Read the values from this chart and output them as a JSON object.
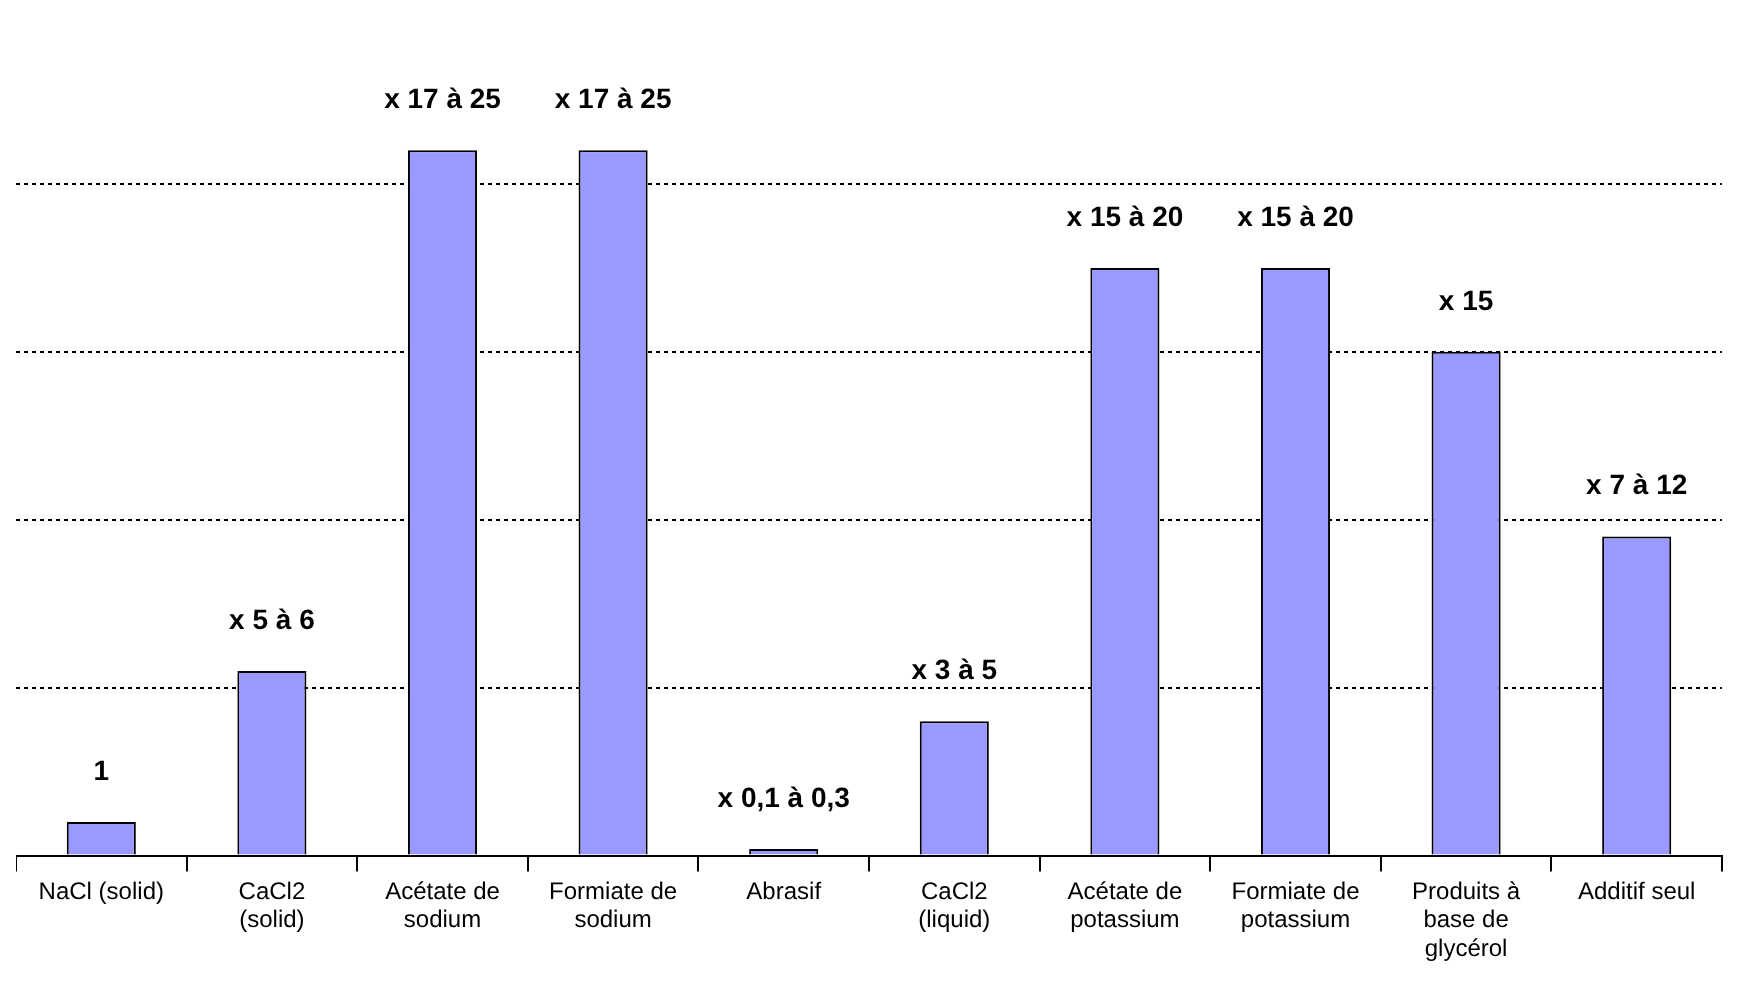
{
  "chart_data": {
    "type": "bar",
    "grid": "y",
    "tick_labels": "x",
    "yticks": [
      {
        "value": 0,
        "label": null
      },
      {
        "value": 5,
        "label": null
      },
      {
        "value": 10,
        "label": null
      },
      {
        "value": 15,
        "label": null
      },
      {
        "value": 20,
        "label": null
      }
    ],
    "categories": [
      "NaCl (solid)",
      "CaCl2 (solid)",
      "Acétate de sodium",
      "Formiate de sodium",
      "Abrasif",
      "CaCl2 (liquid)",
      "Acétate de potassium",
      "Formiate de potassium",
      "Produits à base de glycérol",
      "Additif seul"
    ],
    "values": [
      1,
      5.5,
      21,
      21,
      0.2,
      4,
      17.5,
      17.5,
      15,
      9.5
    ],
    "value_labels": [
      "1",
      "x 5 à 6",
      "x 17 à 25",
      "x 17 à 25",
      "x 0,1 à 0,3",
      "x 3 à 5",
      "x 15 à 20",
      "x 15 à 20",
      "x 15",
      "x 7 à 12"
    ],
    "color": "#9999ff"
  }
}
